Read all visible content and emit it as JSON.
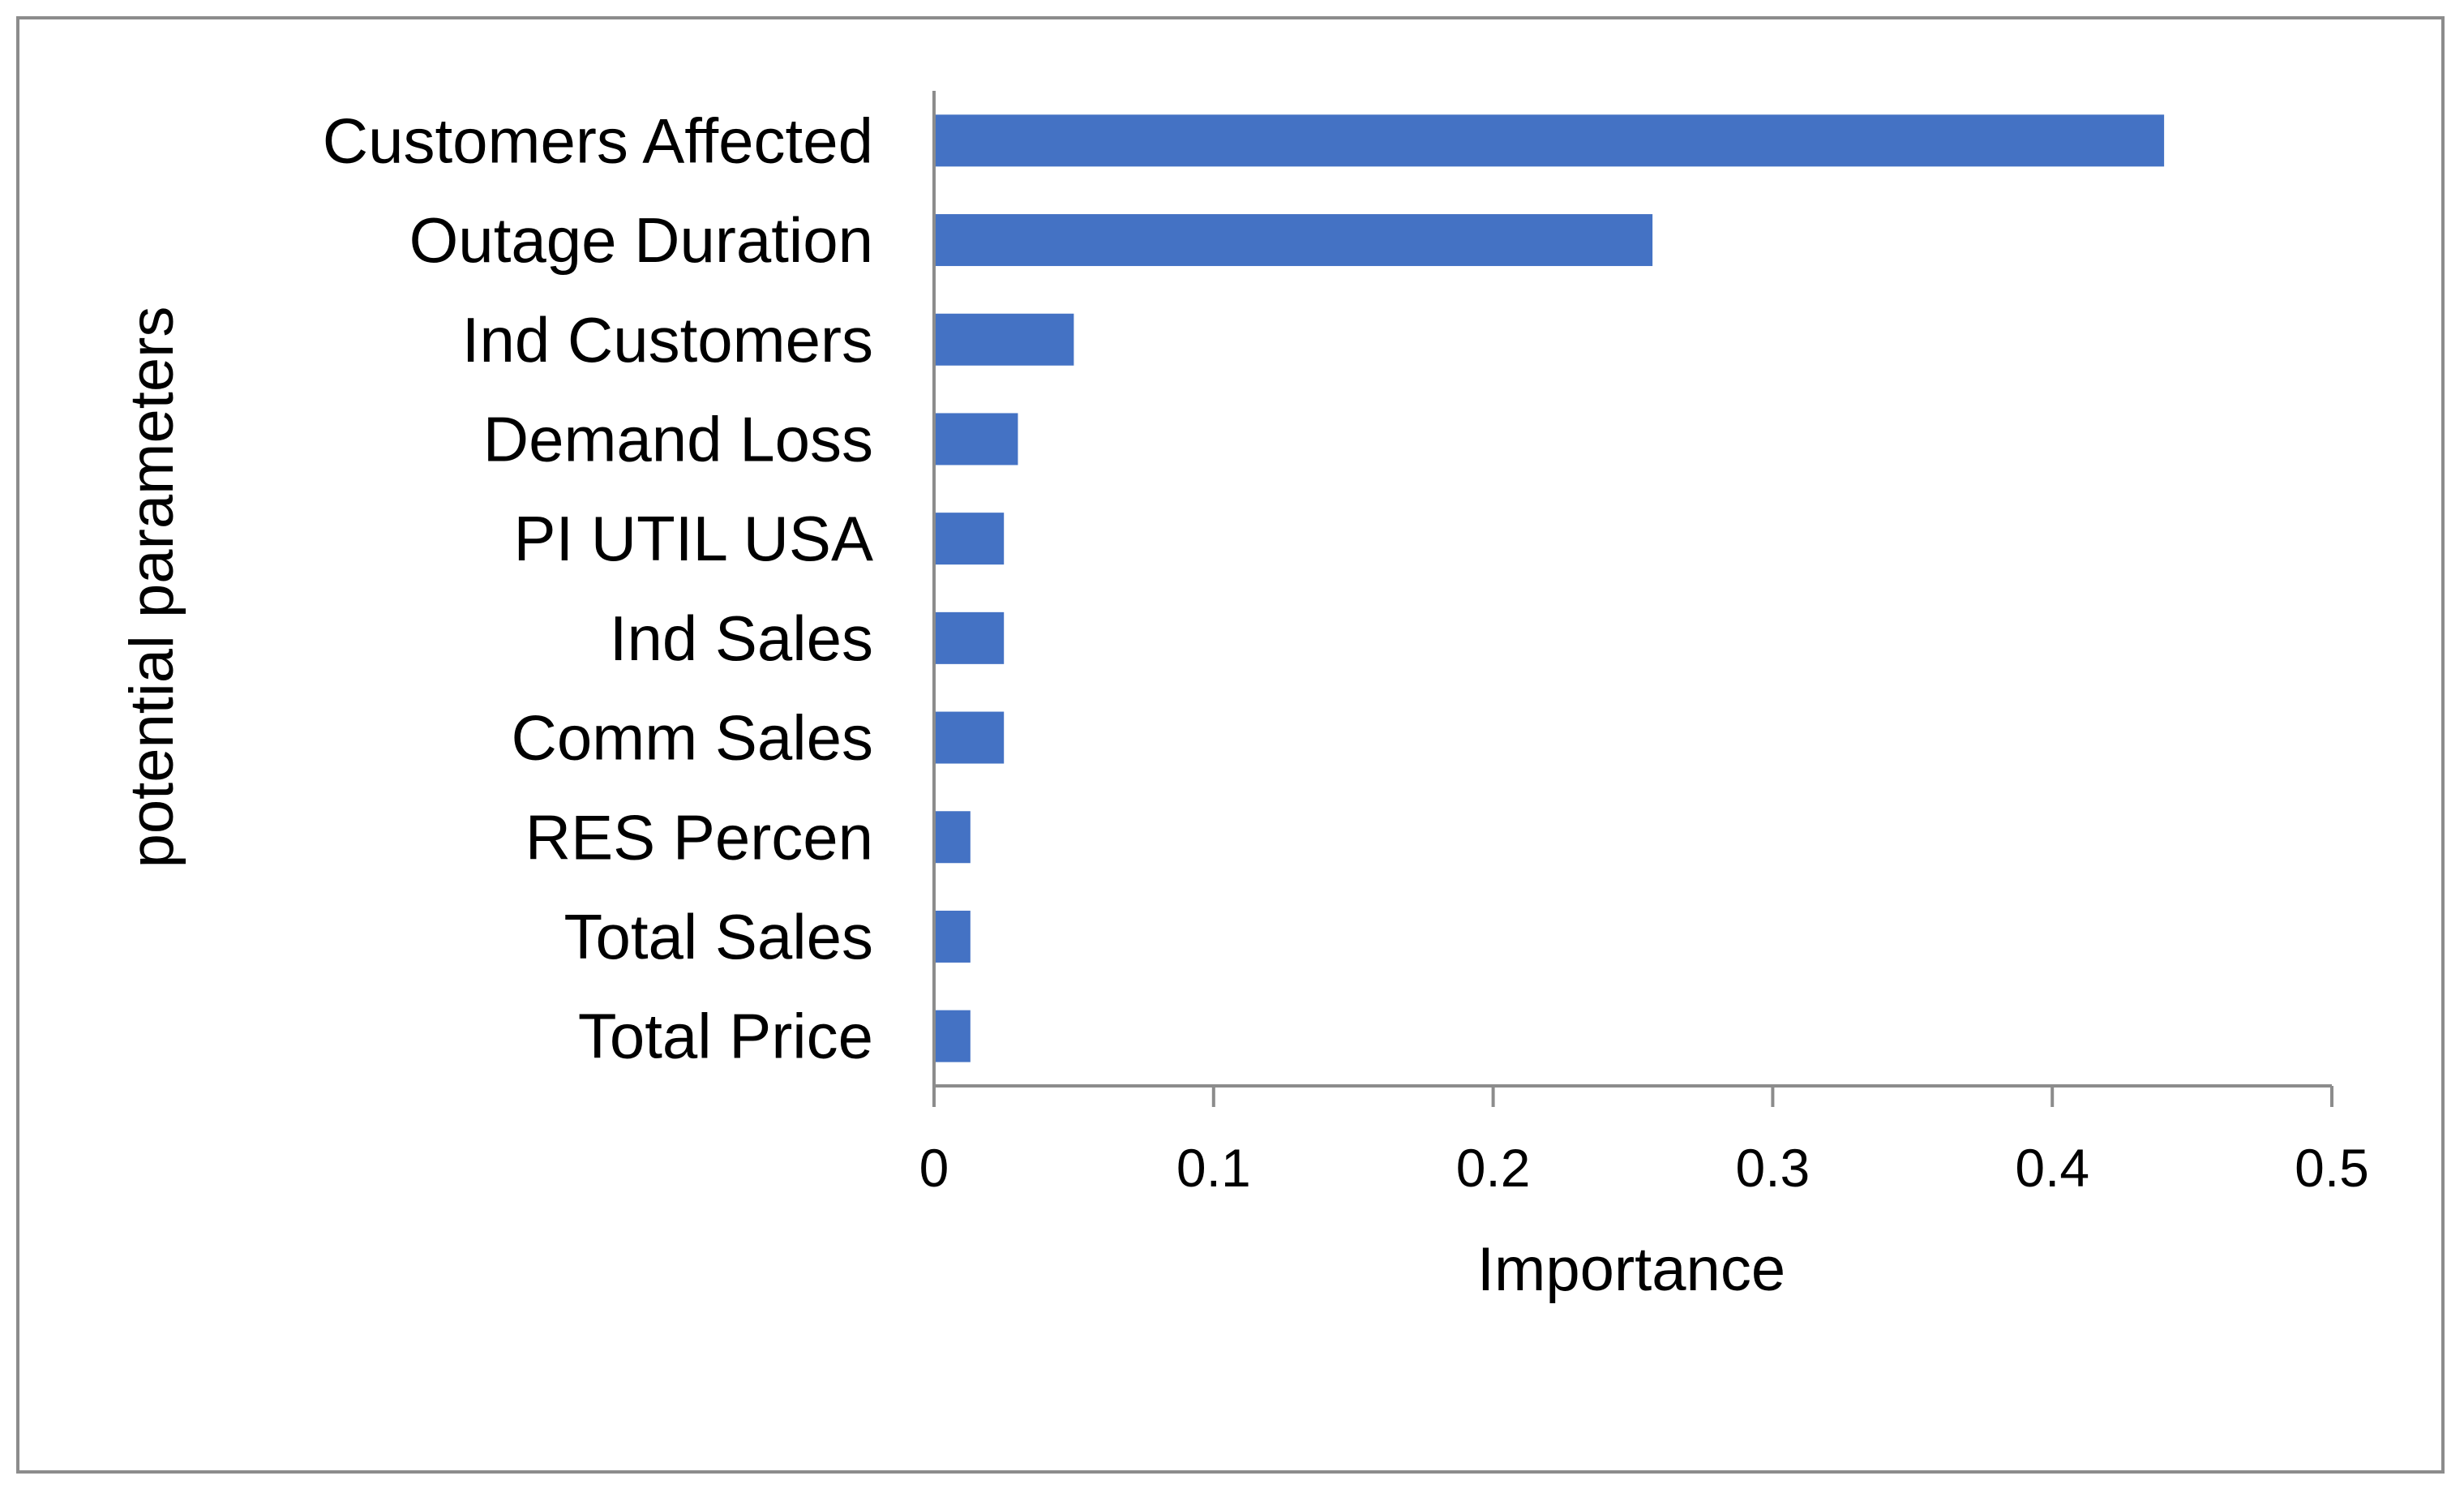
{
  "chart_data": {
    "type": "bar",
    "orientation": "horizontal",
    "categories": [
      "Customers Affected",
      "Outage Duration",
      "Ind Customers",
      "Demand Loss",
      "PI UTIL USA",
      "Ind Sales",
      "Comm Sales",
      "RES Percen",
      "Total Sales",
      "Total Price"
    ],
    "values": [
      0.44,
      0.257,
      0.05,
      0.03,
      0.025,
      0.025,
      0.025,
      0.013,
      0.013,
      0.013
    ],
    "xlabel": "Importance",
    "ylabel": "potential parameters",
    "xlim": [
      0,
      0.5
    ],
    "xticks": [
      0,
      0.1,
      0.2,
      0.3,
      0.4,
      0.5
    ],
    "xtick_labels": [
      "0",
      "0.1",
      "0.2",
      "0.3",
      "0.4",
      "0.5"
    ],
    "grid": false,
    "bar_color": "#4472c4",
    "axis_color": "#8c8c8c"
  }
}
